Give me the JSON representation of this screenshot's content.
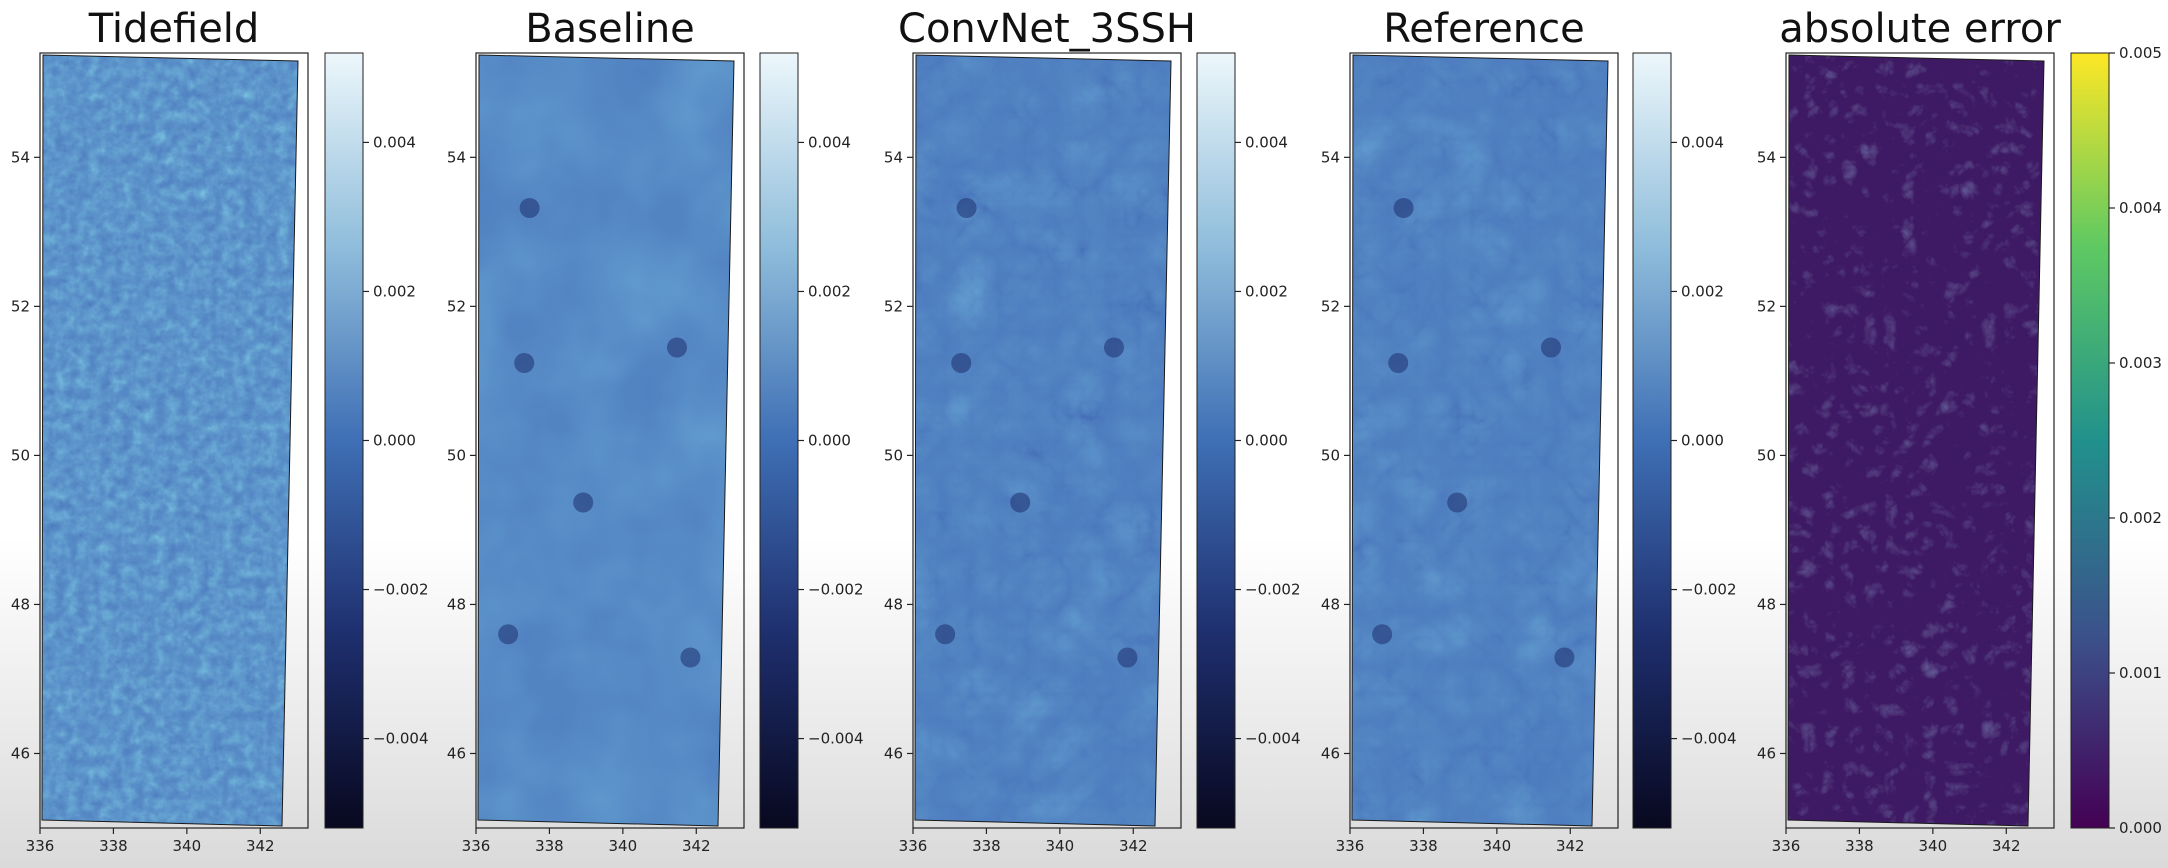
{
  "chart_data": [
    {
      "type": "heatmap",
      "title": "Tidefield",
      "x_ticks": [
        336,
        338,
        340,
        342
      ],
      "y_ticks": [
        46,
        48,
        50,
        52,
        54
      ],
      "xlim": [
        336,
        343.3
      ],
      "ylim": [
        45,
        55.4
      ],
      "colormap": "Blues_r",
      "colorbar": {
        "ticks": [
          "0.004",
          "0.002",
          "0.000",
          "−0.002",
          "−0.004"
        ],
        "range": [
          -0.0052,
          0.0052
        ]
      }
    },
    {
      "type": "heatmap",
      "title": "Baseline",
      "x_ticks": [
        336,
        338,
        340,
        342
      ],
      "y_ticks": [
        46,
        48,
        50,
        52,
        54
      ],
      "xlim": [
        336,
        343.3
      ],
      "ylim": [
        45,
        55.4
      ],
      "colormap": "Blues_r",
      "colorbar": {
        "ticks": [
          "0.004",
          "0.002",
          "0.000",
          "−0.002",
          "−0.004"
        ],
        "range": [
          -0.0052,
          0.0052
        ]
      }
    },
    {
      "type": "heatmap",
      "title": "ConvNet_3SSH",
      "x_ticks": [
        336,
        338,
        340,
        342
      ],
      "y_ticks": [
        46,
        48,
        50,
        52,
        54
      ],
      "xlim": [
        336,
        343.3
      ],
      "ylim": [
        45,
        55.4
      ],
      "colormap": "Blues_r",
      "colorbar": {
        "ticks": [
          "0.004",
          "0.002",
          "0.000",
          "−0.002",
          "−0.004"
        ],
        "range": [
          -0.0052,
          0.0052
        ]
      }
    },
    {
      "type": "heatmap",
      "title": "Reference",
      "x_ticks": [
        336,
        338,
        340,
        342
      ],
      "y_ticks": [
        46,
        48,
        50,
        52,
        54
      ],
      "xlim": [
        336,
        343.3
      ],
      "ylim": [
        45,
        55.4
      ],
      "colormap": "Blues_r",
      "colorbar": {
        "ticks": [
          "0.004",
          "0.002",
          "0.000",
          "−0.002",
          "−0.004"
        ],
        "range": [
          -0.0052,
          0.0052
        ]
      }
    },
    {
      "type": "heatmap",
      "title": "absolute error",
      "x_ticks": [
        336,
        338,
        340,
        342
      ],
      "y_ticks": [
        46,
        48,
        50,
        52,
        54
      ],
      "xlim": [
        336,
        343.3
      ],
      "ylim": [
        45,
        55.4
      ],
      "colormap": "viridis",
      "colorbar": {
        "ticks": [
          "0.005",
          "0.004",
          "0.003",
          "0.002",
          "0.001",
          "0.000"
        ],
        "range": [
          0,
          0.005
        ]
      }
    }
  ],
  "colors": {
    "blues_dark": "#08081f",
    "blues_mid": "#3f6fb5",
    "blues_light": "#edf7fb",
    "viridis_low": "#440154",
    "viridis_mid": "#21918c",
    "viridis_high": "#fde725"
  }
}
